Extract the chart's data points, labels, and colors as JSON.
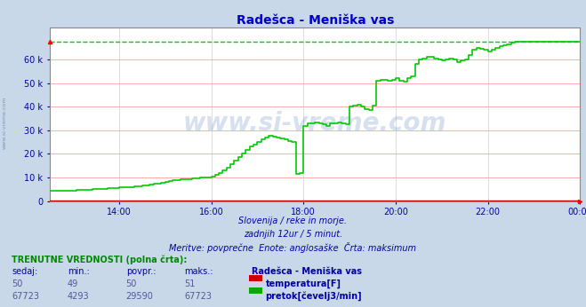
{
  "title": "Radešca - Meniška vas",
  "title_color": "#0000cc",
  "bg_color": "#c8d8e8",
  "plot_bg_color": "#ffffff",
  "grid_h_color": "#ffaaaa",
  "grid_v_color": "#dddddd",
  "xlabel_color": "#0000aa",
  "ylabel_color": "#0000aa",
  "xlim": [
    12.5,
    24.0
  ],
  "ylim": [
    0,
    70000
  ],
  "yticks": [
    0,
    10000,
    20000,
    30000,
    40000,
    50000,
    60000
  ],
  "ytick_labels": [
    "0",
    "10 k",
    "20 k",
    "30 k",
    "40 k",
    "50 k",
    "60 k"
  ],
  "xtick_labels": [
    "14:00",
    "16:00",
    "18:00",
    "20:00",
    "22:00",
    "00:00"
  ],
  "xtick_hours": [
    14,
    16,
    18,
    20,
    22,
    24
  ],
  "max_line_value": 67723,
  "max_line_color": "#00cc00",
  "temp_line_color": "#cc0000",
  "flow_line_color": "#00cc00",
  "watermark_text": "www.si-vreme.com",
  "watermark_color": "#2255aa",
  "watermark_alpha": 0.18,
  "sidebar_text": "www.si-vreme.com",
  "subtitle1": "Slovenija / reke in morje.",
  "subtitle2": "zadnjih 12ur / 5 minut.",
  "subtitle3": "Meritve: povprečne  Enote: anglosaške  Črta: maksimum",
  "subtitle_color": "#0000aa",
  "table_header": "TRENUTNE VREDNOSTI (polna črta):",
  "table_header_color": "#008800",
  "col_headers": [
    "sedaj:",
    "min.:",
    "povpr.:",
    "maks.:",
    "Radešca - Meniška vas"
  ],
  "col_header_color": "#0000aa",
  "temp_row": [
    "50",
    "49",
    "50",
    "51"
  ],
  "flow_row": [
    "67723",
    "4293",
    "29590",
    "67723"
  ],
  "temp_label": "temperatura[F]",
  "flow_label": "pretok[čevelj3/min]",
  "legend_temp_color": "#cc0000",
  "legend_flow_color": "#00aa00",
  "flow_data_x": [
    12.5,
    12.583,
    12.667,
    12.75,
    12.833,
    12.917,
    13.0,
    13.083,
    13.167,
    13.25,
    13.333,
    13.417,
    13.5,
    13.583,
    13.667,
    13.75,
    13.833,
    13.917,
    14.0,
    14.083,
    14.167,
    14.25,
    14.333,
    14.417,
    14.5,
    14.583,
    14.667,
    14.75,
    14.833,
    14.917,
    15.0,
    15.083,
    15.167,
    15.25,
    15.333,
    15.417,
    15.5,
    15.583,
    15.667,
    15.75,
    15.833,
    15.917,
    16.0,
    16.083,
    16.167,
    16.25,
    16.333,
    16.417,
    16.5,
    16.583,
    16.667,
    16.75,
    16.833,
    16.917,
    17.0,
    17.083,
    17.167,
    17.25,
    17.333,
    17.417,
    17.5,
    17.583,
    17.667,
    17.75,
    17.833,
    17.917,
    18.0,
    18.083,
    18.167,
    18.25,
    18.333,
    18.417,
    18.5,
    18.583,
    18.667,
    18.75,
    18.833,
    18.917,
    19.0,
    19.083,
    19.167,
    19.25,
    19.333,
    19.417,
    19.5,
    19.583,
    19.667,
    19.75,
    19.833,
    19.917,
    20.0,
    20.083,
    20.167,
    20.25,
    20.333,
    20.417,
    20.5,
    20.583,
    20.667,
    20.75,
    20.833,
    20.917,
    21.0,
    21.083,
    21.167,
    21.25,
    21.333,
    21.417,
    21.5,
    21.583,
    21.667,
    21.75,
    21.833,
    21.917,
    22.0,
    22.083,
    22.167,
    22.25,
    22.333,
    22.417,
    22.5,
    22.583,
    22.667,
    22.75,
    22.833,
    22.917,
    23.0,
    23.083,
    23.167,
    23.25,
    23.333,
    23.417,
    23.5,
    23.583,
    23.667,
    23.75,
    23.833,
    23.917,
    24.0
  ],
  "flow_data_y": [
    4200,
    4200,
    4300,
    4300,
    4350,
    4400,
    4500,
    4600,
    4700,
    4800,
    4900,
    5000,
    5100,
    5200,
    5300,
    5400,
    5500,
    5600,
    5700,
    5800,
    5900,
    6000,
    6200,
    6400,
    6600,
    6800,
    7000,
    7200,
    7500,
    7800,
    8100,
    8400,
    8700,
    9000,
    9200,
    9300,
    9400,
    9600,
    9800,
    10000,
    9900,
    10100,
    10400,
    11000,
    12000,
    13000,
    14200,
    15500,
    17000,
    18500,
    20000,
    21800,
    23000,
    24000,
    25000,
    26000,
    27000,
    27500,
    27300,
    27000,
    26500,
    26000,
    25500,
    25000,
    11500,
    12000,
    32000,
    33000,
    33000,
    33200,
    33000,
    32500,
    32000,
    33000,
    33000,
    33500,
    33000,
    32500,
    40000,
    40500,
    41000,
    40000,
    39000,
    38500,
    40500,
    51000,
    51500,
    51200,
    51000,
    51500,
    52000,
    51000,
    50500,
    52000,
    53000,
    58000,
    60000,
    60500,
    61000,
    61000,
    60500,
    60000,
    59500,
    60000,
    60500,
    60000,
    59000,
    59500,
    60000,
    62000,
    64000,
    65000,
    64500,
    64000,
    63500,
    64000,
    65000,
    65500,
    66000,
    66500,
    67000,
    67500,
    67500,
    67500,
    67500,
    67700,
    67723,
    67723,
    67723,
    67723,
    67723,
    67723,
    67723,
    67723,
    67723,
    67723,
    67723,
    67723,
    67723
  ]
}
